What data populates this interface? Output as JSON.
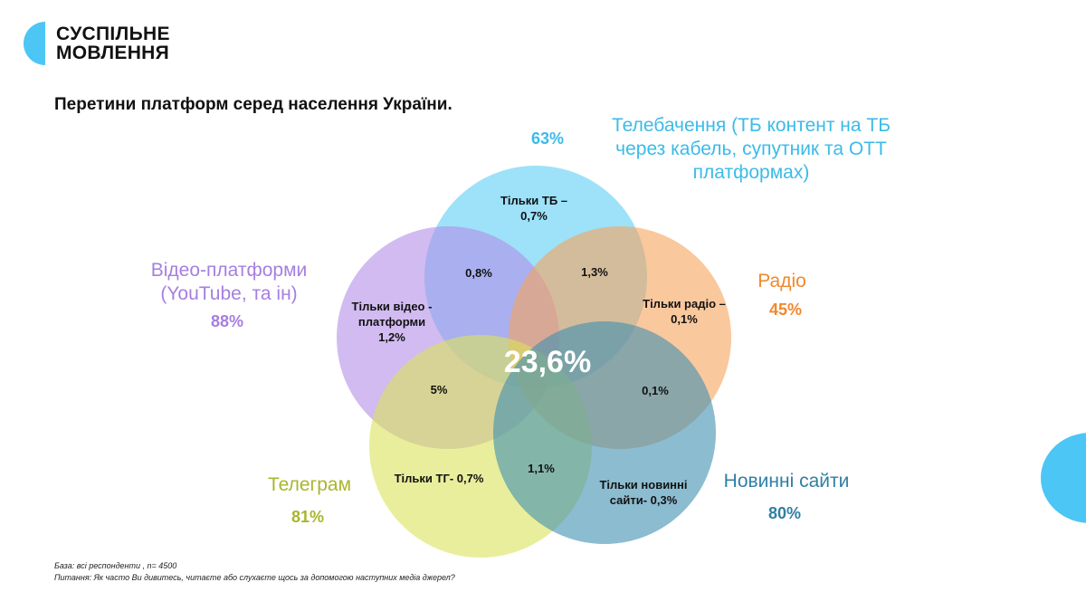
{
  "logo": {
    "line1": "СУСПІЛЬНЕ",
    "line2": "МОВЛЕННЯ"
  },
  "title": "Перетини платформ серед населення України.",
  "colors": {
    "tv": "#5ccff5",
    "video": "#b38de8",
    "radio": "#f7a35c",
    "telegram": "#dbe35a",
    "news": "#3f8fb0"
  },
  "sets": {
    "tv": {
      "name": "Телебачення (ТБ контент на ТБ через кабель, супутник та ОТТ платформах)",
      "line1": "Телебачення (ТБ контент на ТБ",
      "line2": "через кабель, супутник та ОТТ",
      "line3": "платформах)",
      "pct": "63%"
    },
    "video": {
      "line1": "Відео-платформи",
      "line2": "(YouTube, та ін)",
      "pct": "88%"
    },
    "radio": {
      "line1": "Радіо",
      "pct": "45%"
    },
    "telegram": {
      "line1": "Телеграм",
      "pct": "81%"
    },
    "news": {
      "line1": "Новинні сайти",
      "pct": "80%"
    }
  },
  "regions": {
    "only_tv_1": "Тільки ТБ –",
    "only_tv_2": "0,7%",
    "tv_video": "0,8%",
    "tv_radio": "1,3%",
    "only_video_1": "Тільки відео -",
    "only_video_2": "платформи",
    "only_video_3": "1,2%",
    "only_radio_1": "Тільки радіо –",
    "only_radio_2": "0,1%",
    "all": "23,6%",
    "video_telegram": "5%",
    "radio_news": "0,1%",
    "only_telegram": "Тільки ТГ- 0,7%",
    "telegram_news": "1,1%",
    "only_news_1": "Тільки новинні",
    "only_news_2": "сайти- 0,3%"
  },
  "footnote": {
    "base": "База: всі респонденти , n= 4500",
    "question": "Питання: Як часто Ви дивитесь, читаєте або слухаєте щось за допомогою наступних медіа джерел?"
  }
}
